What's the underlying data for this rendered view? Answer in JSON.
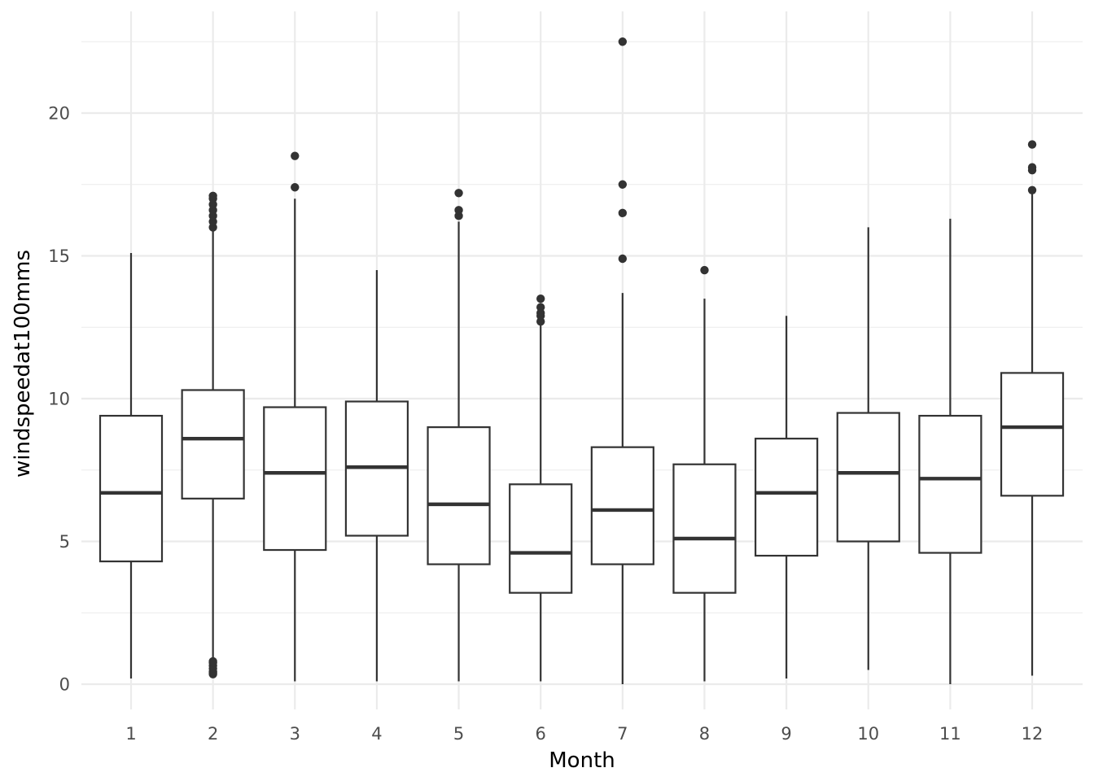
{
  "chart_data": {
    "type": "boxplot",
    "title": "",
    "xlabel": "Month",
    "ylabel": "windspeedat100mms",
    "categories": [
      "1",
      "2",
      "3",
      "4",
      "5",
      "6",
      "7",
      "8",
      "9",
      "10",
      "11",
      "12"
    ],
    "y_ticks": [
      0,
      5,
      10,
      15,
      20
    ],
    "y_tick_labels": [
      "0",
      "5",
      "10",
      "15",
      "20"
    ],
    "ylim": [
      -0.8,
      23.6
    ],
    "grid": true,
    "legend": "none",
    "boxes": [
      {
        "category": "1",
        "whisker_low": 0.2,
        "q1": 4.3,
        "median": 6.7,
        "q3": 9.4,
        "whisker_high": 15.1,
        "outliers": []
      },
      {
        "category": "2",
        "whisker_low": 0.9,
        "q1": 6.5,
        "median": 8.6,
        "q3": 10.3,
        "whisker_high": 15.9,
        "outliers": [
          0.35,
          0.4,
          0.45,
          0.55,
          0.65,
          0.75,
          0.8,
          16.0,
          16.2,
          16.4,
          16.6,
          16.8,
          17.0,
          17.1
        ]
      },
      {
        "category": "3",
        "whisker_low": 0.1,
        "q1": 4.7,
        "median": 7.4,
        "q3": 9.7,
        "whisker_high": 17.0,
        "outliers": [
          17.4,
          18.5
        ]
      },
      {
        "category": "4",
        "whisker_low": 0.1,
        "q1": 5.2,
        "median": 7.6,
        "q3": 9.9,
        "whisker_high": 14.5,
        "outliers": []
      },
      {
        "category": "5",
        "whisker_low": 0.1,
        "q1": 4.2,
        "median": 6.3,
        "q3": 9.0,
        "whisker_high": 16.2,
        "outliers": [
          16.4,
          16.6,
          17.2
        ]
      },
      {
        "category": "6",
        "whisker_low": 0.1,
        "q1": 3.2,
        "median": 4.6,
        "q3": 7.0,
        "whisker_high": 12.6,
        "outliers": [
          12.7,
          12.9,
          13.0,
          13.2,
          13.5
        ]
      },
      {
        "category": "7",
        "whisker_low": 0.0,
        "q1": 4.2,
        "median": 6.1,
        "q3": 8.3,
        "whisker_high": 13.7,
        "outliers": [
          14.9,
          16.5,
          17.5,
          22.5
        ]
      },
      {
        "category": "8",
        "whisker_low": 0.1,
        "q1": 3.2,
        "median": 5.1,
        "q3": 7.7,
        "whisker_high": 13.5,
        "outliers": [
          14.5
        ]
      },
      {
        "category": "9",
        "whisker_low": 0.2,
        "q1": 4.5,
        "median": 6.7,
        "q3": 8.6,
        "whisker_high": 12.9,
        "outliers": []
      },
      {
        "category": "10",
        "whisker_low": 0.5,
        "q1": 5.0,
        "median": 7.4,
        "q3": 9.5,
        "whisker_high": 16.0,
        "outliers": []
      },
      {
        "category": "11",
        "whisker_low": 0.0,
        "q1": 4.6,
        "median": 7.2,
        "q3": 9.4,
        "whisker_high": 16.3,
        "outliers": []
      },
      {
        "category": "12",
        "whisker_low": 0.3,
        "q1": 6.6,
        "median": 9.0,
        "q3": 10.9,
        "whisker_high": 17.2,
        "outliers": [
          17.3,
          18.0,
          18.1,
          18.9
        ]
      }
    ]
  }
}
